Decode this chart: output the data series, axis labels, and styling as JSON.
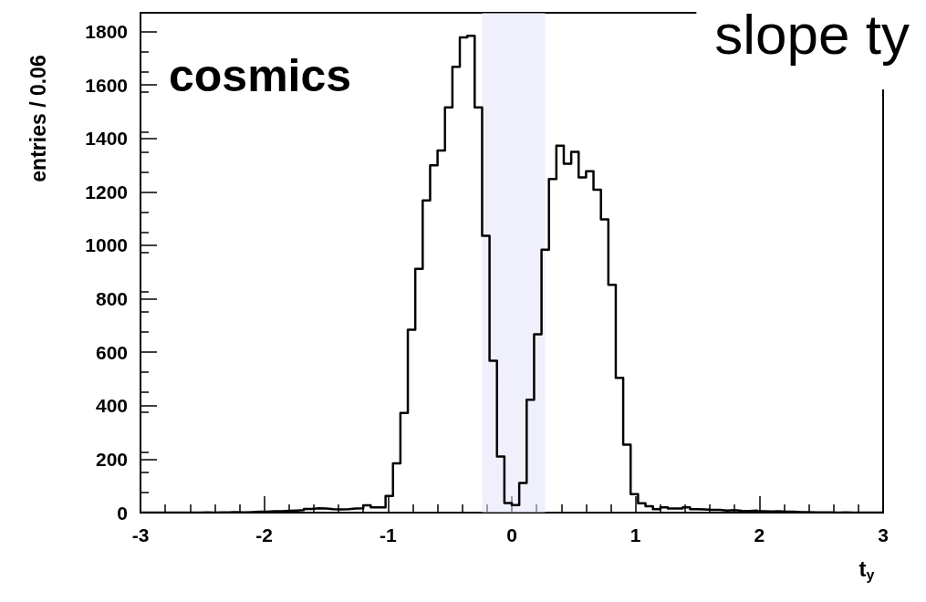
{
  "chart_data": {
    "type": "histogram",
    "title": "slope ty",
    "xlabel": "t$_{y}$",
    "ylabel": "entries / 0.06",
    "annotations": [
      "cosmics"
    ],
    "bins": [
      -3,
      -2.94,
      -2.88,
      -2.82,
      -2.76,
      -2.7,
      -2.64,
      -2.58,
      -2.52,
      -2.46,
      -2.4,
      -2.34,
      -2.28,
      -2.22,
      -2.16,
      -2.1,
      -2.04,
      -1.98,
      -1.92,
      -1.86,
      -1.8,
      -1.74,
      -1.68,
      -1.62,
      -1.56,
      -1.5,
      -1.44,
      -1.38,
      -1.32,
      -1.26,
      -1.2,
      -1.14,
      -1.08,
      -1.02,
      -0.96,
      -0.9,
      -0.84,
      -0.78,
      -0.72,
      -0.66,
      -0.6,
      -0.54,
      -0.48,
      -0.42,
      -0.36,
      -0.3,
      -0.24,
      -0.18,
      -0.12,
      -0.06,
      0,
      0.06,
      0.12,
      0.18,
      0.24,
      0.3,
      0.36,
      0.42,
      0.48,
      0.54,
      0.6,
      0.66,
      0.72,
      0.78,
      0.84,
      0.9,
      0.96,
      1.02,
      1.08,
      1.14,
      1.2,
      1.26,
      1.32,
      1.38,
      1.44,
      1.5,
      1.56,
      1.62,
      1.68,
      1.74,
      1.8,
      1.86,
      1.92,
      1.98,
      2.04,
      2.1,
      2.16,
      2.22,
      2.28,
      2.34,
      2.4,
      2.46,
      2.52,
      2.58,
      2.64,
      2.7,
      2.76,
      2.82,
      2.88,
      2.94,
      3
    ],
    "values": [
      0,
      0,
      0,
      0,
      0,
      0,
      0,
      0,
      1,
      0,
      1,
      1,
      2,
      1,
      2,
      3,
      3,
      5,
      5,
      7,
      8,
      9,
      14,
      16,
      15,
      13,
      12,
      13,
      15,
      16,
      27,
      20,
      20,
      62,
      184,
      373,
      684,
      912,
      1168,
      1299,
      1355,
      1516,
      1668,
      1778,
      1784,
      1516,
      1036,
      568,
      210,
      36,
      28,
      111,
      422,
      667,
      984,
      1248,
      1373,
      1305,
      1350,
      1254,
      1277,
      1208,
      1097,
      852,
      504,
      254,
      69,
      35,
      24,
      13,
      20,
      15,
      15,
      20,
      13,
      12,
      10,
      10,
      8,
      9,
      7,
      6,
      8,
      5,
      4,
      5,
      3,
      3,
      2,
      2,
      1,
      1,
      1,
      0,
      1,
      0,
      0,
      0,
      0,
      0
    ],
    "color": "#000000",
    "bands": [
      {
        "axis": "x",
        "from": -0.24,
        "to": 0.27,
        "color": "#e4e4fb"
      }
    ],
    "xlim": [
      -3,
      3
    ],
    "xticks": [
      -3,
      -2,
      -1,
      0,
      1,
      2,
      3
    ],
    "ylim": [
      0,
      1870
    ],
    "yticks": [
      0,
      200,
      400,
      600,
      800,
      1000,
      1200,
      1400,
      1600,
      1800
    ],
    "grid": false
  }
}
